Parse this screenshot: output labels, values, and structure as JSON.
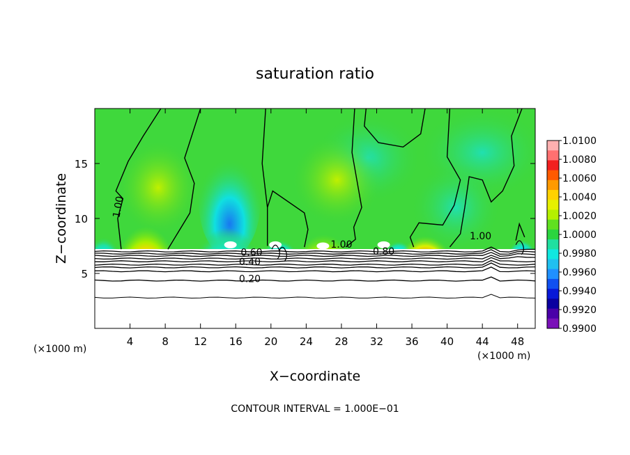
{
  "chart_data": {
    "type": "heatmap",
    "title": "saturation ratio",
    "xlabel": "X−coordinate",
    "ylabel": "Z−coordinate",
    "x_unit": "(×1000 m)",
    "z_unit": "(×1000 m)",
    "xlim": [
      0,
      50
    ],
    "ylim": [
      0,
      20
    ],
    "x_ticks": [
      "4",
      "8",
      "12",
      "16",
      "20",
      "24",
      "28",
      "32",
      "36",
      "40",
      "44",
      "48"
    ],
    "y_ticks": [
      "5",
      "10",
      "15"
    ],
    "footer": "CONTOUR INTERVAL = 1.000E−01",
    "colorbar": {
      "min": 0.99,
      "max": 1.01,
      "labels": [
        "1.0100",
        "1.0080",
        "1.0060",
        "1.0040",
        "1.0020",
        "1.0000",
        "0.9980",
        "0.9960",
        "0.9940",
        "0.9920",
        "0.9900"
      ],
      "colors": [
        "#ffb0b0",
        "#ff7070",
        "#f22020",
        "#ff5a00",
        "#ff9a00",
        "#ffd200",
        "#e6f000",
        "#b4f000",
        "#60e020",
        "#2bd53f",
        "#20e0a0",
        "#10e8e0",
        "#20c0f0",
        "#2090ff",
        "#1050f0",
        "#0818d8",
        "#0a00a0",
        "#4a00a8",
        "#7a10b8"
      ]
    },
    "contour_labels": [
      {
        "text": "1.00",
        "x": 3.0,
        "z": 11.0
      },
      {
        "text": "1.00",
        "x": 28.0,
        "z": 7.35
      },
      {
        "text": "1.00",
        "x": 43.8,
        "z": 8.1
      },
      {
        "text": "0.60",
        "x": 17.8,
        "z": 6.6
      },
      {
        "text": "0.40",
        "x": 17.6,
        "z": 5.75
      },
      {
        "text": "0.80",
        "x": 32.8,
        "z": 6.7
      },
      {
        "text": "0.20",
        "x": 17.6,
        "z": 4.2
      }
    ],
    "features": {
      "cloud_base_z": 7.2,
      "supersaturated_cores_x": [
        5.8,
        26.0,
        37.5
      ],
      "subsaturated_cores_x": [
        15.0,
        1.5
      ],
      "dry_region_contours_z": [
        7.0,
        6.8,
        6.6,
        6.35,
        6.1,
        5.8,
        5.55,
        5.2,
        4.35,
        2.8
      ]
    }
  }
}
